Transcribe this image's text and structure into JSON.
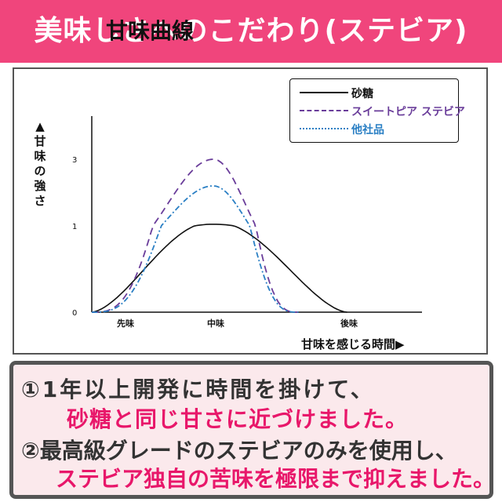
{
  "banner": {
    "title": "美味しさへのこだわり(ステビア)"
  },
  "chart_data": {
    "type": "line",
    "title": "甘味曲線",
    "ylabel": "▲甘味の強さ",
    "xlabel": "甘味を感じる時間▶",
    "yticks": [
      "0",
      "1",
      "3"
    ],
    "xticks": [
      "先味",
      "中味",
      "後味"
    ],
    "series": [
      {
        "name": "砂糖",
        "color": "#111111",
        "dash": "none",
        "peak": 1.05,
        "start": 0,
        "peak_at": 1,
        "end": 2.1
      },
      {
        "name": "スイートピア ステビア",
        "color": "#6a3d9a",
        "dash": "9,6",
        "peak": 3.0,
        "start": 0,
        "peak_at": 1,
        "end": 1.7
      },
      {
        "name": "他社品",
        "color": "#2a7fc4",
        "dash": "7,3,2,3",
        "peak": 2.2,
        "start": 0,
        "peak_at": 1,
        "end": 1.7
      }
    ]
  },
  "bottom": {
    "line1": "①1年以上開発に時間を掛けて、",
    "line2": "砂糖と同じ甘さに近づけました。",
    "line3": "②最高級グレードのステビアのみを使用し、",
    "line4": "ステビア独自の苦味を極限まで抑えました。"
  }
}
